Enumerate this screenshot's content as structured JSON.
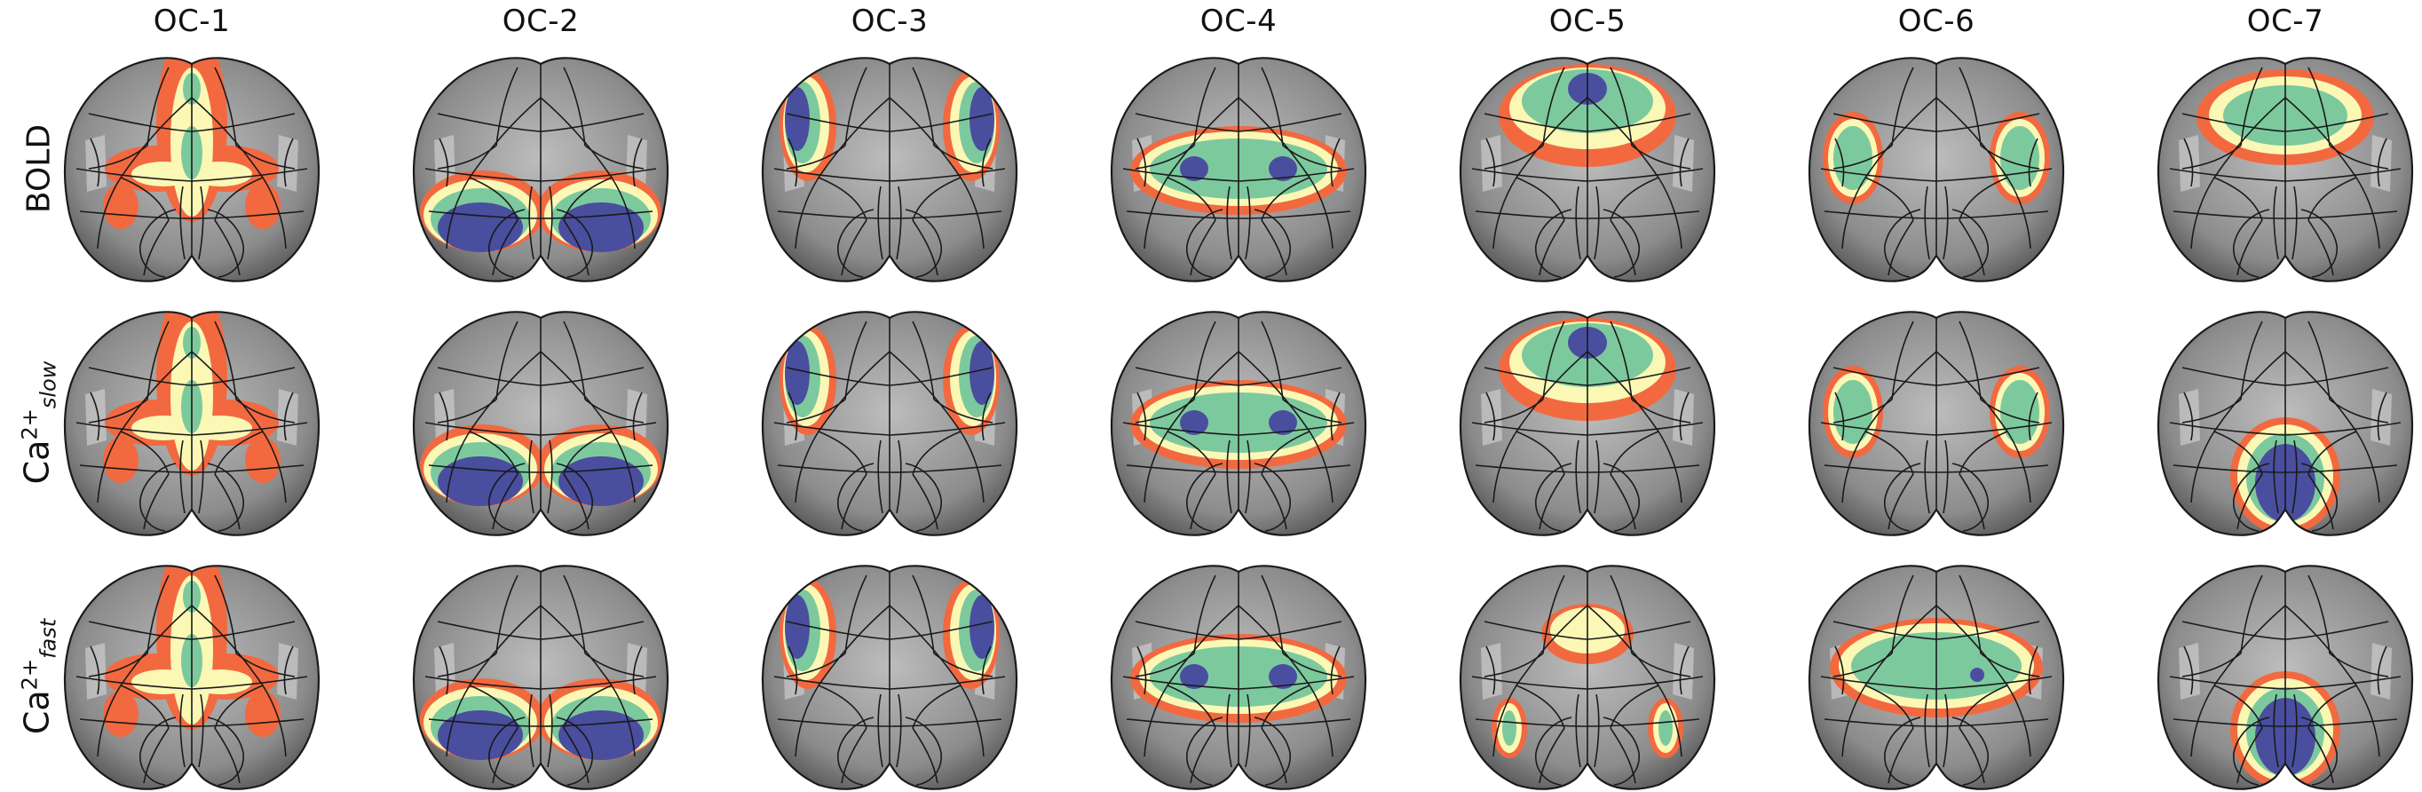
{
  "figure": {
    "columns": [
      "OC-1",
      "OC-2",
      "OC-3",
      "OC-4",
      "OC-5",
      "OC-6",
      "OC-7"
    ],
    "rows": [
      {
        "id": "bold",
        "label": "BOLD"
      },
      {
        "id": "ca_slow",
        "label_base": "Ca",
        "label_sup": "2+",
        "label_sub": "slow"
      },
      {
        "id": "ca_fast",
        "label_base": "Ca",
        "label_sup": "2+",
        "label_sub": "fast"
      }
    ]
  },
  "colors": {
    "level_4": "#4a4e9e",
    "level_3": "#7cc99e",
    "level_2": "#fbf7b5",
    "level_1": "#f26940",
    "brain_light": "#bdbdbd",
    "brain_dark": "#4d4d4d",
    "outline": "#1a1a1a"
  },
  "overlay_maps": {
    "bold": [
      [
        [
          1,
          0
        ],
        [
          1,
          -0.22
        ],
        [
          1,
          -0.42
        ],
        [
          1,
          -0.62
        ],
        [
          2,
          -0.22
        ],
        [
          2,
          -0.42
        ],
        [
          3,
          -0.22
        ],
        [
          2,
          -0.62
        ],
        [
          0,
          -0.1
        ],
        [
          3,
          0.6
        ],
        [
          3,
          0.95
        ]
      ],
      [
        [
          4,
          1
        ],
        [
          4,
          -1
        ],
        [
          3,
          1.3
        ],
        [
          3,
          -1.3
        ],
        [
          2,
          1.5
        ],
        [
          2,
          -1.5
        ],
        [
          1,
          1.6
        ],
        [
          1,
          -1.6
        ]
      ],
      [
        [
          4,
          3
        ],
        [
          4,
          -3
        ],
        [
          3,
          2.6
        ],
        [
          3,
          -2.6
        ],
        [
          2,
          2.2
        ],
        [
          2,
          -2.2
        ],
        [
          1,
          1.9
        ],
        [
          1,
          -1.9
        ]
      ],
      [
        [
          2,
          0.8
        ],
        [
          2,
          -0.8
        ],
        [
          3,
          0.8
        ],
        [
          3,
          -0.8
        ],
        [
          4,
          0.9
        ],
        [
          4,
          -0.9
        ],
        [
          2,
          0.4
        ],
        [
          2,
          -0.4
        ],
        [
          1,
          0.2
        ],
        [
          1,
          -0.2
        ]
      ],
      [
        [
          0,
          0.25
        ],
        [
          0,
          -0.25
        ],
        [
          1,
          0.25
        ],
        [
          1,
          -0.25
        ],
        [
          0,
          0.55
        ],
        [
          0,
          -0.55
        ]
      ],
      [
        [
          2,
          2
        ],
        [
          2,
          -2
        ],
        [
          3,
          2
        ],
        [
          3,
          -2
        ],
        [
          1,
          1.9
        ],
        [
          1,
          -1.9
        ]
      ],
      [
        [
          1,
          0.5
        ],
        [
          1,
          -0.5
        ],
        [
          1,
          0.2
        ],
        [
          1,
          -0.2
        ],
        [
          1,
          0.8
        ],
        [
          1,
          -0.8
        ]
      ]
    ],
    "ca_slow": [
      [
        [
          1,
          0
        ],
        [
          1,
          -0.22
        ],
        [
          1,
          -0.42
        ],
        [
          1,
          -0.62
        ],
        [
          2,
          -0.22
        ],
        [
          2,
          -0.42
        ],
        [
          3,
          -0.22
        ],
        [
          2,
          -0.62
        ],
        [
          0,
          -0.1
        ],
        [
          3,
          0.6
        ],
        [
          3,
          0.95
        ]
      ],
      [
        [
          4,
          1
        ],
        [
          4,
          -1
        ],
        [
          3,
          1.3
        ],
        [
          3,
          -1.3
        ],
        [
          2,
          1.5
        ],
        [
          2,
          -1.5
        ],
        [
          1,
          1.6
        ],
        [
          1,
          -1.6
        ]
      ],
      [
        [
          4,
          3
        ],
        [
          4,
          -3
        ],
        [
          3,
          2.6
        ],
        [
          3,
          -2.6
        ],
        [
          2,
          2.2
        ],
        [
          2,
          -2.2
        ],
        [
          1,
          1.9
        ],
        [
          1,
          -1.9
        ]
      ],
      [
        [
          2,
          0.8
        ],
        [
          2,
          -0.8
        ],
        [
          3,
          0.8
        ],
        [
          3,
          -0.8
        ],
        [
          4,
          0.9
        ],
        [
          4,
          -0.9
        ],
        [
          2,
          0.4
        ],
        [
          2,
          -0.4
        ],
        [
          1,
          0.2
        ],
        [
          1,
          -0.2
        ]
      ],
      [
        [
          0,
          0.25
        ],
        [
          0,
          -0.25
        ],
        [
          1,
          0.25
        ],
        [
          1,
          -0.25
        ],
        [
          0,
          0.55
        ],
        [
          0,
          -0.55
        ]
      ],
      [
        [
          2,
          2
        ],
        [
          2,
          -2
        ],
        [
          3,
          2
        ],
        [
          3,
          -2
        ],
        [
          1,
          1.9
        ],
        [
          1,
          -1.9
        ]
      ],
      [
        [
          1,
          0.5
        ],
        [
          1,
          -0.5
        ],
        [
          1,
          0.2
        ],
        [
          1,
          -0.2
        ],
        [
          1,
          0.8
        ],
        [
          1,
          -0.8
        ]
      ]
    ],
    "ca_fast": [
      [
        [
          1,
          0
        ],
        [
          1,
          -0.22
        ],
        [
          1,
          -0.42
        ],
        [
          1,
          -0.62
        ],
        [
          2,
          -0.22
        ],
        [
          2,
          -0.42
        ],
        [
          3,
          -0.22
        ],
        [
          2,
          -0.62
        ],
        [
          0,
          -0.1
        ],
        [
          3,
          0.6
        ],
        [
          3,
          0.95
        ]
      ],
      [
        [
          4,
          1
        ],
        [
          4,
          -1
        ],
        [
          3,
          1.3
        ],
        [
          3,
          -1.3
        ],
        [
          2,
          1.5
        ],
        [
          2,
          -1.5
        ],
        [
          1,
          1.6
        ],
        [
          1,
          -1.6
        ]
      ],
      [
        [
          4,
          3
        ],
        [
          4,
          -3
        ],
        [
          3,
          2.6
        ],
        [
          3,
          -2.6
        ],
        [
          2,
          2.2
        ],
        [
          2,
          -2.2
        ],
        [
          1,
          1.9
        ],
        [
          1,
          -1.9
        ]
      ],
      [
        [
          2,
          0.8
        ],
        [
          2,
          -0.8
        ],
        [
          3,
          0.8
        ],
        [
          3,
          -0.8
        ],
        [
          4,
          0.9
        ],
        [
          4,
          -0.9
        ],
        [
          2,
          0.4
        ],
        [
          2,
          -0.4
        ],
        [
          1,
          0.2
        ],
        [
          1,
          -0.2
        ]
      ],
      [
        [
          0,
          0.25
        ],
        [
          0,
          -0.25
        ],
        [
          1,
          0.25
        ],
        [
          1,
          -0.25
        ],
        [
          0,
          0.55
        ],
        [
          0,
          -0.55
        ]
      ],
      [
        [
          2,
          2
        ],
        [
          2,
          -2
        ],
        [
          3,
          2
        ],
        [
          3,
          -2
        ],
        [
          1,
          1.9
        ],
        [
          1,
          -1.9
        ]
      ],
      [
        [
          1,
          0.5
        ],
        [
          1,
          -0.5
        ],
        [
          1,
          0.2
        ],
        [
          1,
          -0.2
        ],
        [
          1,
          0.8
        ],
        [
          1,
          -0.8
        ]
      ]
    ]
  }
}
